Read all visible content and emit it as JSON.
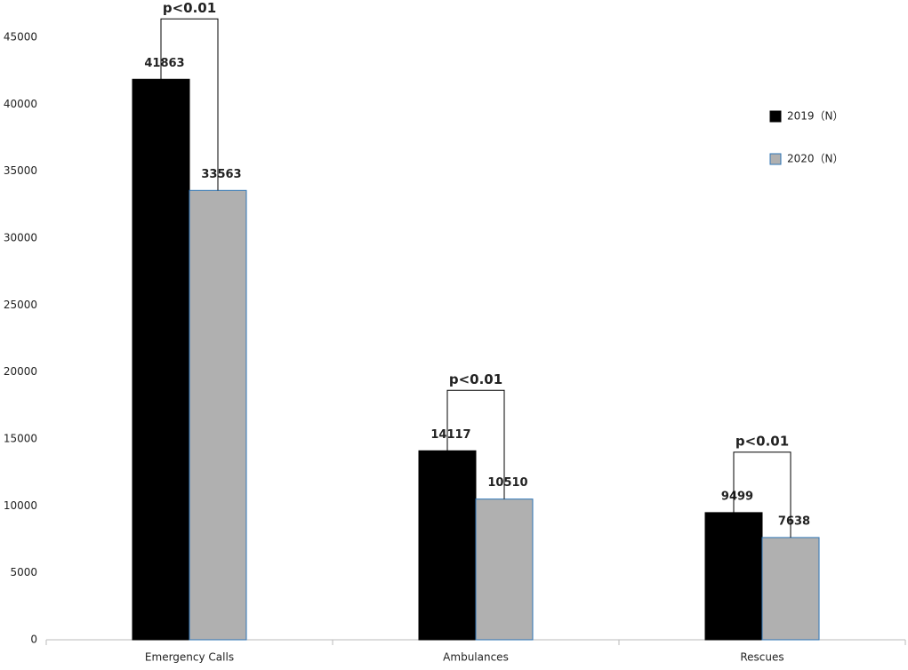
{
  "chart_data": {
    "type": "bar",
    "categories": [
      "Emergency Calls",
      "Ambulances",
      "Rescues"
    ],
    "series": [
      {
        "name": "2019（N）",
        "color": "#000000",
        "values": [
          41863,
          14117,
          9499
        ]
      },
      {
        "name": "2020（N）",
        "color": "#b0b0b0",
        "values": [
          33563,
          10510,
          7638
        ]
      }
    ],
    "annotations": [
      "p<0.01",
      "p<0.01",
      "p<0.01"
    ],
    "ylim": [
      0,
      45000
    ],
    "yticks": [
      0,
      5000,
      10000,
      15000,
      20000,
      25000,
      30000,
      35000,
      40000,
      45000
    ],
    "grid": false,
    "legend": "right"
  }
}
